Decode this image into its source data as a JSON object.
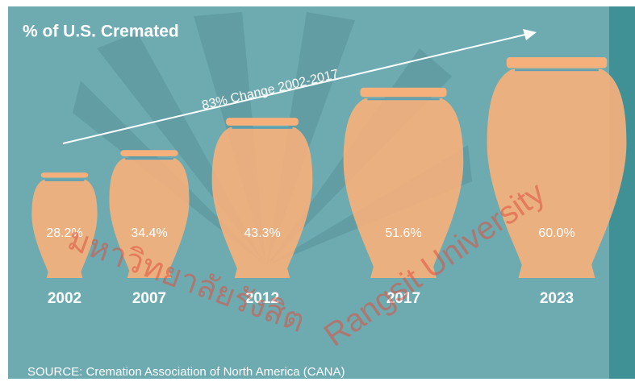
{
  "chart_data": {
    "type": "urn",
    "title": "% of U.S. Cremated",
    "categories": [
      "2002",
      "2007",
      "2012",
      "2017",
      "2023"
    ],
    "values": [
      28.2,
      34.4,
      43.3,
      51.6,
      60.0
    ],
    "value_labels": [
      "28.2%",
      "34.4%",
      "43.3%",
      "51.6%",
      "60.0%"
    ],
    "color": "#f5b07c",
    "annotation": "83% Change 2002-2017",
    "source": "SOURCE: Cremation Association of North America (CANA)",
    "watermark": [
      "มหาวิทยาลัยรังสิต",
      "Rangsit University"
    ]
  }
}
